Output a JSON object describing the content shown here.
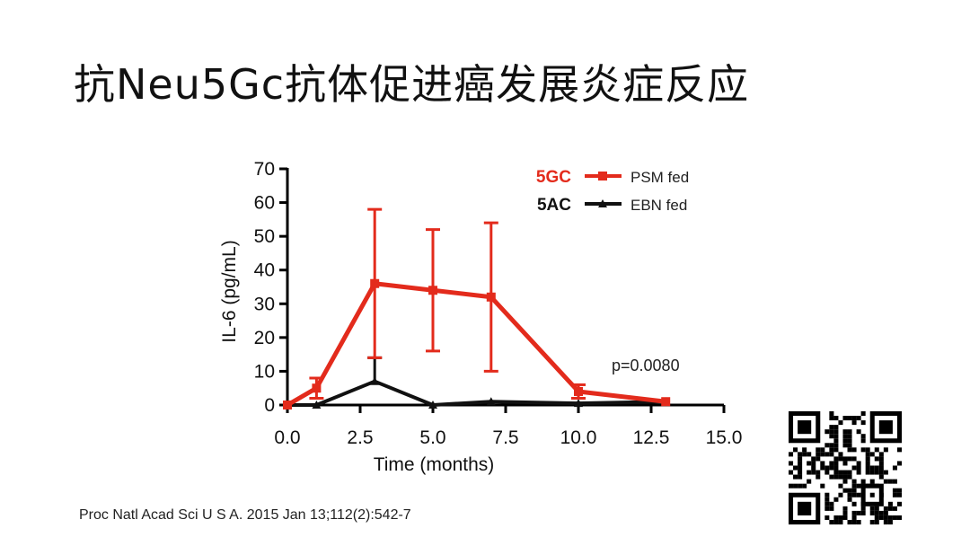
{
  "slide": {
    "title": "抗Neu5Gc抗体促进癌发展炎症反应",
    "citation": "Proc Natl Acad Sci U S A. 2015 Jan 13;112(2):542-7"
  },
  "chart_data": {
    "type": "line",
    "title": "",
    "xlabel": "Time (months)",
    "ylabel": "IL-6 (pg/mL)",
    "xlim": [
      0,
      15
    ],
    "ylim": [
      0,
      70
    ],
    "x_ticks": [
      "0.0",
      "2.5",
      "5.0",
      "7.5",
      "10.0",
      "12.5",
      "15.0"
    ],
    "y_ticks": [
      "0",
      "10",
      "20",
      "30",
      "40",
      "50",
      "60",
      "70"
    ],
    "grid": false,
    "legend_position": "top-right",
    "annotation": "p=0.0080",
    "series": [
      {
        "name": "PSM fed",
        "group_label": "5GC",
        "color": "#e32b1c",
        "label_color": "#e32b1c",
        "points": [
          {
            "x": 0,
            "y": 0,
            "err": 0
          },
          {
            "x": 1,
            "y": 5,
            "err": 3
          },
          {
            "x": 3,
            "y": 36,
            "err": 22
          },
          {
            "x": 5,
            "y": 34,
            "err": 18
          },
          {
            "x": 7,
            "y": 32,
            "err": 22
          },
          {
            "x": 10,
            "y": 4,
            "err": 2
          },
          {
            "x": 13,
            "y": 1,
            "err": 0
          }
        ]
      },
      {
        "name": "EBN fed",
        "group_label": "5AC",
        "color": "#111111",
        "label_color": "#111111",
        "points": [
          {
            "x": 0,
            "y": 0,
            "err": 0
          },
          {
            "x": 1,
            "y": 0,
            "err": 0
          },
          {
            "x": 3,
            "y": 7,
            "err": 7
          },
          {
            "x": 5,
            "y": 0,
            "err": 0
          },
          {
            "x": 7,
            "y": 1,
            "err": 0
          },
          {
            "x": 10,
            "y": 0.5,
            "err": 0
          },
          {
            "x": 13,
            "y": 1,
            "err": 0
          }
        ]
      }
    ]
  },
  "qr": {
    "icon": "qr-code-icon"
  }
}
